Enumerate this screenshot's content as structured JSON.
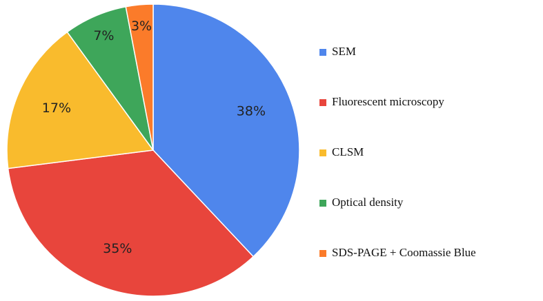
{
  "chart_data": {
    "type": "pie",
    "categories": [
      "SEM",
      "Fluorescent microscopy",
      "CLSM",
      "Optical density",
      "SDS-PAGE + Coomassie Blue"
    ],
    "values": [
      38,
      35,
      17,
      7,
      3
    ],
    "value_labels": [
      "38%",
      "35%",
      "17%",
      "7%",
      "3%"
    ],
    "colors": [
      "#4f86ec",
      "#e8453c",
      "#f9bb2d",
      "#3ea65a",
      "#fb7b2a"
    ],
    "legend": "right"
  }
}
